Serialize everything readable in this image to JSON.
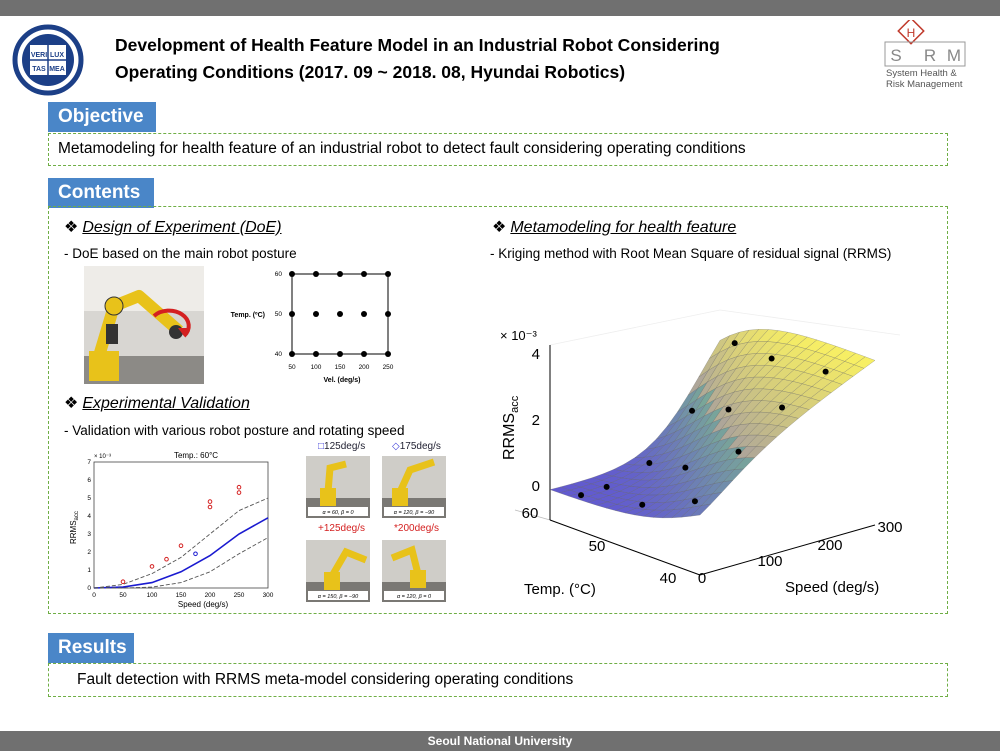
{
  "header": {
    "title_line1": "Development of Health Feature Model in an Industrial Robot Considering",
    "title_line2": "Operating Conditions (2017. 09 ~ 2018. 08, Hyundai Robotics)",
    "logo_left_text": [
      "VERI",
      "LUX",
      "TAS",
      "MEA"
    ],
    "logo_right_letters": [
      "S",
      "H",
      "R",
      "M"
    ],
    "logo_right_sub1": "System Health &",
    "logo_right_sub2": "Risk Management"
  },
  "objective": {
    "heading": "Objective",
    "text": "Metamodeling for health feature of an industrial robot to detect fault considering operating conditions"
  },
  "contents": {
    "heading": "Contents",
    "doe": {
      "title": "Design of Experiment (DoE)",
      "desc": "- DoE based on the main robot posture"
    },
    "validation": {
      "title": "Experimental Validation",
      "desc": "- Validation with various robot posture and rotating speed",
      "photo_labels": [
        "125deg/s",
        "175deg/s",
        "+125deg/s",
        "*200deg/s"
      ],
      "photo_captions": [
        "α = 60, β = 0",
        "α = 120, β = −90",
        "α = 150, β = −90",
        "α = 120, β = 0"
      ]
    },
    "meta": {
      "title": "Metamodeling for health feature",
      "desc": "- Kriging method with Root Mean Square of residual signal (RRMS)"
    }
  },
  "results": {
    "heading": "Results",
    "text": "Fault detection with RRMS meta-model considering operating conditions"
  },
  "footer": {
    "text": "Seoul National University"
  },
  "bullet": "❖",
  "colors": {
    "header_blue": "#4a86c8",
    "dash_green": "#6fae45",
    "bar_gray": "#707070",
    "robot_yellow": "#e8c21a"
  },
  "chart_data": [
    {
      "type": "scatter",
      "title": "",
      "xlabel": "Vel. (deg/s)",
      "ylabel": "Temp. (ºC)",
      "xticks": [
        "50",
        "100",
        "150",
        "200",
        "250"
      ],
      "yticks": [
        "40",
        "50",
        "60"
      ],
      "xlim": [
        50,
        250
      ],
      "ylim": [
        40,
        60
      ],
      "points": [
        [
          50,
          60
        ],
        [
          100,
          60
        ],
        [
          150,
          60
        ],
        [
          200,
          60
        ],
        [
          250,
          60
        ],
        [
          50,
          50
        ],
        [
          100,
          50
        ],
        [
          150,
          50
        ],
        [
          200,
          50
        ],
        [
          250,
          50
        ],
        [
          50,
          40
        ],
        [
          100,
          40
        ],
        [
          150,
          40
        ],
        [
          200,
          40
        ],
        [
          250,
          40
        ]
      ]
    },
    {
      "type": "line",
      "title": "Temp.: 60°C",
      "xlabel": "Speed (deg/s)",
      "ylabel_main": "RRMS",
      "ylabel_sub": "acc",
      "exponent": "× 10⁻³",
      "xticks": [
        "0",
        "50",
        "100",
        "150",
        "200",
        "250",
        "300"
      ],
      "yticks": [
        "0",
        "1",
        "2",
        "3",
        "4",
        "5",
        "6",
        "7"
      ],
      "xlim": [
        0,
        300
      ],
      "ylim": [
        0,
        7
      ],
      "series": [
        {
          "values": [
            [
              0,
              0
            ],
            [
              50,
              0.05
            ],
            [
              100,
              0.3
            ],
            [
              150,
              0.9
            ],
            [
              200,
              1.8
            ],
            [
              250,
              3.0
            ],
            [
              300,
              3.9
            ]
          ]
        },
        {
          "values": [
            [
              0,
              0
            ],
            [
              50,
              0.2
            ],
            [
              100,
              0.8
            ],
            [
              150,
              1.7
            ],
            [
              200,
              3.0
            ],
            [
              250,
              4.3
            ],
            [
              300,
              5.0
            ]
          ]
        },
        {
          "values": [
            [
              0,
              0
            ],
            [
              50,
              0
            ],
            [
              100,
              0.05
            ],
            [
              150,
              0.3
            ],
            [
              200,
              0.9
            ],
            [
              250,
              1.9
            ],
            [
              300,
              2.8
            ]
          ]
        }
      ],
      "markers": [
        [
          50,
          0.35
        ],
        [
          100,
          1.2
        ],
        [
          125,
          1.6
        ],
        [
          150,
          2.35
        ],
        [
          200,
          4.5
        ],
        [
          200,
          4.8
        ],
        [
          250,
          5.3
        ],
        [
          250,
          5.6
        ],
        [
          175,
          1.9
        ]
      ]
    },
    {
      "type": "surface",
      "xlabel": "Speed (deg/s)",
      "ylabel": "Temp. (°C)",
      "zlabel_main": "RRMS",
      "zlabel_sub": "acc",
      "exponent": "× 10⁻³",
      "xticks": [
        "0",
        "100",
        "200",
        "300"
      ],
      "yticks": [
        "40",
        "50",
        "60"
      ],
      "zticks": [
        "0",
        "2",
        "4"
      ]
    }
  ]
}
